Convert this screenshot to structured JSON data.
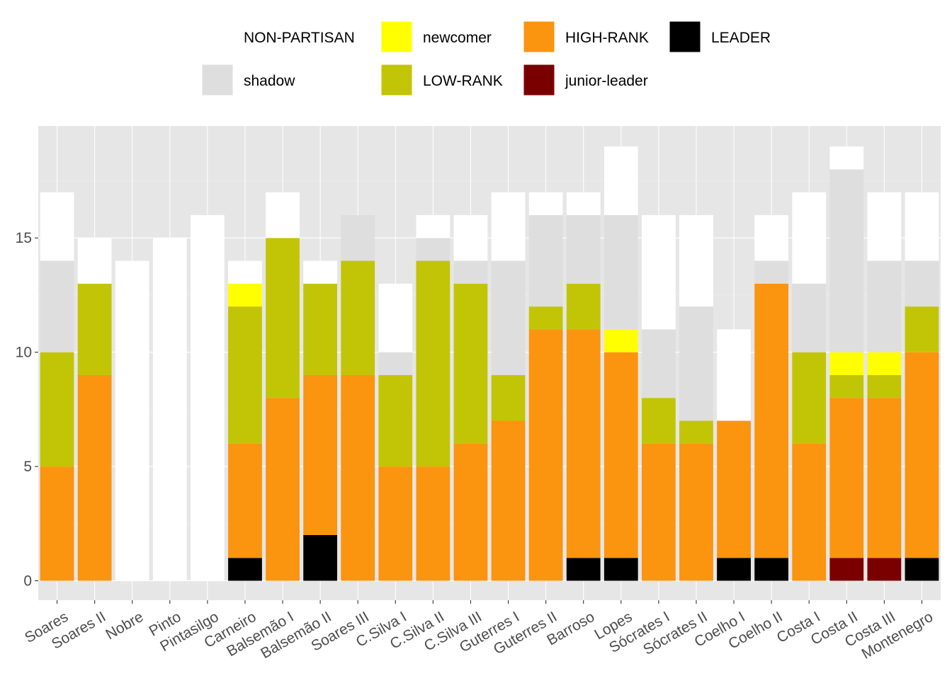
{
  "chart_data": {
    "type": "bar",
    "stacked": true,
    "title": "",
    "xlabel": "",
    "ylabel": "",
    "ylim": [
      -0.85,
      19.9
    ],
    "yticks": [
      0,
      5,
      10,
      15
    ],
    "grid": true,
    "legend_position": "top",
    "categories": [
      "Soares",
      "Soares II",
      "Nobre",
      "Pinto",
      "Pintasilgo",
      "Carneiro",
      "Balsemão I",
      "Balsemão II",
      "Soares III",
      "C.Silva I",
      "C.Silva II",
      "C.Silva III",
      "Guterres I",
      "Guterres II",
      "Barroso",
      "Lopes",
      "Sócrates I",
      "Sócrates II",
      "Coelho I",
      "Coelho II",
      "Costa I",
      "Costa II",
      "Costa III",
      "Montenegro"
    ],
    "series": [
      {
        "name": "LEADER",
        "color": "#000000",
        "values": [
          0,
          0,
          0,
          0,
          0,
          1,
          0,
          2,
          0,
          0,
          0,
          0,
          0,
          0,
          1,
          1,
          0,
          0,
          1,
          1,
          0,
          0,
          0,
          1
        ]
      },
      {
        "name": "junior-leader",
        "color": "#7a0000",
        "values": [
          0,
          0,
          0,
          0,
          0,
          0,
          0,
          0,
          0,
          0,
          0,
          0,
          0,
          0,
          0,
          0,
          0,
          0,
          0,
          0,
          0,
          1,
          1,
          0
        ]
      },
      {
        "name": "HIGH-RANK",
        "color": "#fb940f",
        "values": [
          5,
          9,
          0,
          0,
          0,
          5,
          8,
          7,
          9,
          5,
          5,
          6,
          7,
          11,
          10,
          9,
          6,
          6,
          6,
          12,
          6,
          7,
          7,
          9
        ]
      },
      {
        "name": "LOW-RANK",
        "color": "#c2c505",
        "values": [
          5,
          4,
          0,
          0,
          0,
          6,
          7,
          4,
          5,
          4,
          9,
          7,
          2,
          1,
          2,
          0,
          2,
          1,
          0,
          0,
          4,
          1,
          1,
          2
        ]
      },
      {
        "name": "newcomer",
        "color": "#ffff00",
        "values": [
          0,
          0,
          0,
          0,
          0,
          1,
          0,
          0,
          0,
          0,
          0,
          0,
          0,
          0,
          0,
          1,
          0,
          0,
          0,
          0,
          0,
          1,
          1,
          0
        ]
      },
      {
        "name": "shadow",
        "color": "#dedede",
        "values": [
          4,
          0,
          0,
          0,
          0,
          0,
          0,
          0,
          2,
          1,
          1,
          1,
          5,
          4,
          3,
          5,
          3,
          5,
          0,
          1,
          3,
          8,
          4,
          2
        ]
      },
      {
        "name": "NON-PARTISAN",
        "color": "#ffffff",
        "values": [
          3,
          2,
          14,
          15,
          16,
          1,
          2,
          1,
          0,
          3,
          1,
          2,
          3,
          1,
          1,
          3,
          5,
          4,
          4,
          2,
          4,
          1,
          3,
          3
        ]
      }
    ],
    "legend_order": [
      "NON-PARTISAN",
      "shadow",
      "newcomer",
      "LOW-RANK",
      "HIGH-RANK",
      "junior-leader",
      "LEADER"
    ]
  },
  "colors": {
    "panel_background": "#e6e6e6",
    "grid_major": "#ffffff",
    "grid_minor": "#f0f0f0",
    "axis_text": "#4d4d4d",
    "axis_ticks": "#333333"
  }
}
